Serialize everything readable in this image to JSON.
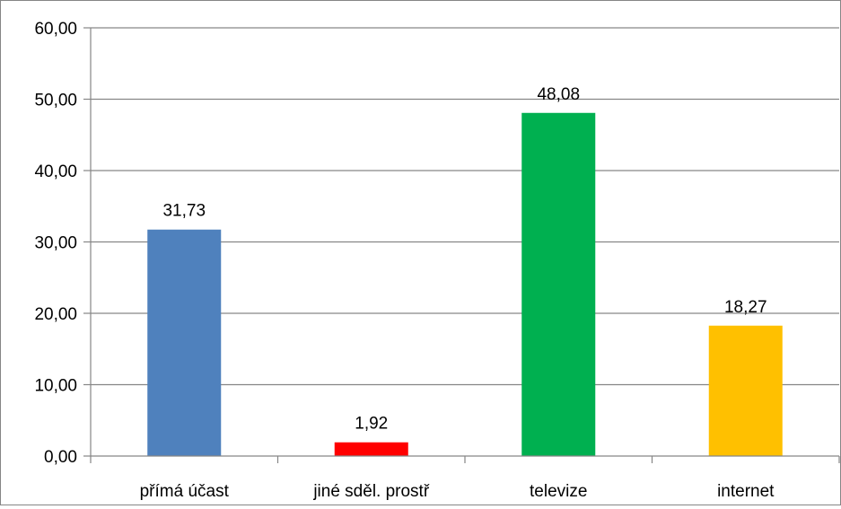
{
  "chart_data": {
    "type": "bar",
    "categories": [
      "přímá účast",
      "jiné sděl. prostř",
      "televize",
      "internet"
    ],
    "values": [
      31.73,
      1.92,
      48.08,
      18.27
    ],
    "value_labels": [
      "31,73",
      "1,92",
      "48,08",
      "18,27"
    ],
    "bar_colors": [
      "#4F81BD",
      "#FF0000",
      "#00B050",
      "#FFC000"
    ],
    "ylim": [
      0,
      60
    ],
    "y_ticks": [
      0,
      10,
      20,
      30,
      40,
      50,
      60
    ],
    "y_tick_labels": [
      "0,00",
      "10,00",
      "20,00",
      "30,00",
      "40,00",
      "50,00",
      "60,00"
    ],
    "grid": true,
    "legend": false,
    "title": "",
    "xlabel": "",
    "ylabel": ""
  }
}
